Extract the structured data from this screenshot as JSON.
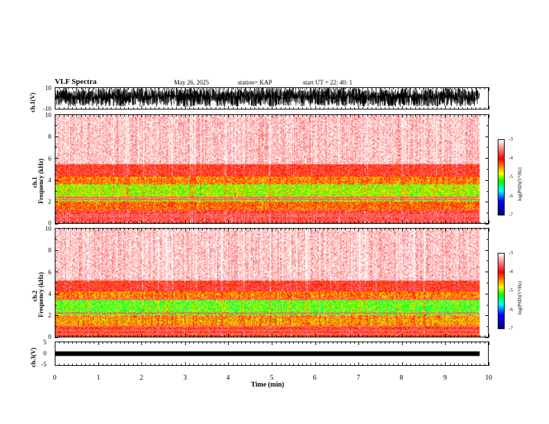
{
  "header": {
    "title": "VLF Spectra",
    "date": "May 26, 2025",
    "station": "station= KAP",
    "start": "start  UT  =    22: 40: 1"
  },
  "panels": {
    "ch1_wave": {
      "ylabel": "ch.1(V)",
      "ticks": [
        "10",
        "-10"
      ]
    },
    "ch1_spec": {
      "ylabel": "Frequency (kHz)",
      "ylabel2": "ch.1",
      "ticks": [
        "10",
        "8",
        "6",
        "4",
        "2",
        "0"
      ]
    },
    "ch2_spec": {
      "ylabel": "Frequency (kHz)",
      "ylabel2": "ch.2",
      "ticks": [
        "10",
        "8",
        "6",
        "4",
        "2",
        "0"
      ]
    },
    "ch3_wave": {
      "ylabel": "ch.3(V)",
      "ticks": [
        "5",
        "0",
        "-5"
      ]
    }
  },
  "colorbar": {
    "ticks": [
      "-3",
      "-4",
      "-5",
      "-6",
      "-7"
    ],
    "label": "log(PSD)(V²/Hz)"
  },
  "xaxis": {
    "ticks": [
      "0",
      "1",
      "2",
      "3",
      "4",
      "5",
      "6",
      "7",
      "8",
      "9",
      "10"
    ],
    "label": "Time  (min)"
  },
  "chart_data": [
    {
      "type": "line",
      "title": "ch.1 waveform",
      "xlabel": "Time (min)",
      "ylabel": "ch.1(V)",
      "xlim": [
        0,
        10
      ],
      "ylim": [
        -10,
        10
      ],
      "data_end_min": 9.8,
      "amplitude_range": [
        -8,
        10
      ]
    },
    {
      "type": "heatmap",
      "title": "ch.1 spectrogram",
      "xlabel": "Time (min)",
      "ylabel": "Frequency (kHz)",
      "xlim": [
        0,
        10
      ],
      "ylim": [
        0,
        10
      ],
      "data_end_min": 9.8,
      "zlabel": "log(PSD)(V²/Hz)",
      "zlim": [
        -7,
        -3
      ],
      "band_profile_khz": [
        {
          "freq_min": 0.0,
          "freq_max": 1.2,
          "log_psd": -3.8
        },
        {
          "freq_min": 1.2,
          "freq_max": 2.0,
          "log_psd": -4.3
        },
        {
          "freq_min": 2.0,
          "freq_max": 3.6,
          "log_psd": -4.9
        },
        {
          "freq_min": 3.6,
          "freq_max": 4.3,
          "log_psd": -4.4
        },
        {
          "freq_min": 4.3,
          "freq_max": 5.5,
          "log_psd": -3.9
        },
        {
          "freq_min": 5.5,
          "freq_max": 10.0,
          "log_psd": -3.2
        }
      ],
      "tone_lines_khz": [
        0.2,
        0.4,
        0.6,
        0.8,
        1.3,
        2.2,
        2.4,
        3.8
      ]
    },
    {
      "type": "heatmap",
      "title": "ch.2 spectrogram",
      "xlabel": "Time (min)",
      "ylabel": "Frequency (kHz)",
      "xlim": [
        0,
        10
      ],
      "ylim": [
        0,
        10
      ],
      "data_end_min": 9.8,
      "zlabel": "log(PSD)(V²/Hz)",
      "zlim": [
        -7,
        -3
      ],
      "band_profile_khz": [
        {
          "freq_min": 0.0,
          "freq_max": 1.0,
          "log_psd": -4.0
        },
        {
          "freq_min": 1.0,
          "freq_max": 2.0,
          "log_psd": -4.5
        },
        {
          "freq_min": 2.0,
          "freq_max": 3.4,
          "log_psd": -5.1
        },
        {
          "freq_min": 3.4,
          "freq_max": 4.2,
          "log_psd": -4.4
        },
        {
          "freq_min": 4.2,
          "freq_max": 5.2,
          "log_psd": -3.9
        },
        {
          "freq_min": 5.2,
          "freq_max": 10.0,
          "log_psd": -3.2
        }
      ],
      "tone_lines_khz": [
        0.3,
        0.6,
        1.0,
        1.8,
        2.2,
        3.5
      ]
    },
    {
      "type": "line",
      "title": "ch.3 waveform",
      "xlabel": "Time (min)",
      "ylabel": "ch.3(V)",
      "xlim": [
        0,
        10
      ],
      "ylim": [
        -5,
        5
      ],
      "data_end_min": 9.8,
      "amplitude_range": [
        -1,
        1
      ]
    }
  ]
}
